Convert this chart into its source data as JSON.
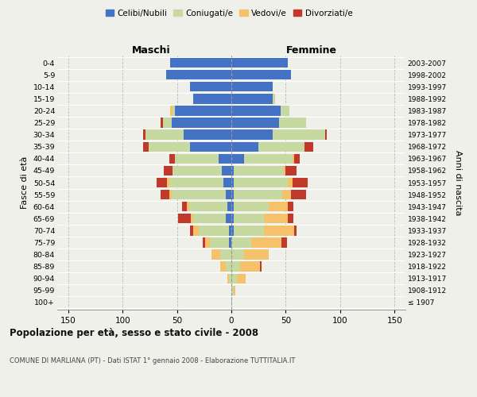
{
  "age_groups": [
    "100+",
    "95-99",
    "90-94",
    "85-89",
    "80-84",
    "75-79",
    "70-74",
    "65-69",
    "60-64",
    "55-59",
    "50-54",
    "45-49",
    "40-44",
    "35-39",
    "30-34",
    "25-29",
    "20-24",
    "15-19",
    "10-14",
    "5-9",
    "0-4"
  ],
  "birth_years": [
    "≤ 1907",
    "1908-1912",
    "1913-1917",
    "1918-1922",
    "1923-1927",
    "1928-1932",
    "1933-1937",
    "1938-1942",
    "1943-1947",
    "1948-1952",
    "1953-1957",
    "1958-1962",
    "1963-1967",
    "1968-1972",
    "1973-1977",
    "1978-1982",
    "1983-1987",
    "1988-1992",
    "1993-1997",
    "1998-2002",
    "2003-2007"
  ],
  "male_celibi": [
    0,
    0,
    0,
    0,
    0,
    2,
    2,
    5,
    4,
    5,
    7,
    9,
    12,
    38,
    44,
    55,
    52,
    35,
    38,
    60,
    56
  ],
  "male_coniugati": [
    0,
    0,
    2,
    5,
    10,
    18,
    28,
    30,
    35,
    50,
    50,
    45,
    40,
    38,
    35,
    8,
    2,
    0,
    0,
    0,
    0
  ],
  "male_vedovi": [
    0,
    0,
    2,
    5,
    8,
    4,
    5,
    2,
    2,
    2,
    2,
    0,
    0,
    0,
    0,
    0,
    2,
    0,
    0,
    0,
    0
  ],
  "male_divorziati": [
    0,
    0,
    0,
    0,
    0,
    2,
    3,
    12,
    4,
    8,
    10,
    8,
    5,
    5,
    2,
    2,
    0,
    0,
    0,
    0,
    0
  ],
  "female_nubili": [
    0,
    0,
    0,
    0,
    0,
    0,
    2,
    2,
    2,
    2,
    2,
    2,
    12,
    25,
    38,
    44,
    45,
    38,
    38,
    55,
    52
  ],
  "female_coniugate": [
    0,
    2,
    5,
    8,
    12,
    18,
    28,
    28,
    32,
    45,
    50,
    46,
    44,
    42,
    48,
    25,
    8,
    2,
    0,
    0,
    0
  ],
  "female_vedove": [
    0,
    2,
    8,
    18,
    22,
    28,
    28,
    22,
    18,
    8,
    4,
    2,
    2,
    0,
    0,
    0,
    0,
    0,
    0,
    0,
    0
  ],
  "female_divorziate": [
    0,
    0,
    0,
    2,
    0,
    5,
    2,
    5,
    5,
    14,
    14,
    10,
    5,
    8,
    2,
    0,
    0,
    0,
    0,
    0,
    0
  ],
  "color_celibi": "#4472c4",
  "color_coniugati": "#c5d9a0",
  "color_vedovi": "#f5c26b",
  "color_divorziati": "#c0392b",
  "bg_color": "#f0f0eb",
  "grid_color": "#bbbbbb",
  "xlim": 160,
  "title": "Popolazione per età, sesso e stato civile - 2008",
  "subtitle": "COMUNE DI MARLIANA (PT) - Dati ISTAT 1° gennaio 2008 - Elaborazione TUTTITALIA.IT",
  "ylabel_left": "Fasce di età",
  "ylabel_right": "Anni di nascita",
  "label_maschi": "Maschi",
  "label_femmine": "Femmine",
  "legend_labels": [
    "Celibi/Nubili",
    "Coniugati/e",
    "Vedovi/e",
    "Divorziati/e"
  ]
}
